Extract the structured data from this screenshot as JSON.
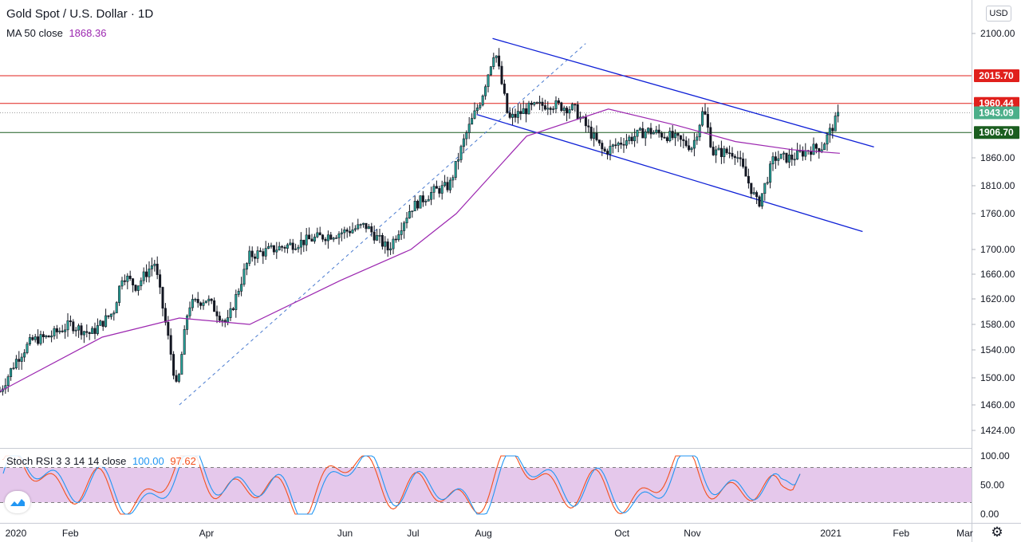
{
  "header": {
    "title": "Gold Spot / U.S. Dollar · 1D",
    "ma_label": "MA 50 close",
    "ma_value": "1868.36",
    "currency": "USD"
  },
  "stoch": {
    "label": "Stoch RSI 3 3 14 14 close",
    "k_value": "100.00",
    "d_value": "97.62",
    "k_color": "#2196f3",
    "d_color": "#f4511e",
    "band_color": "#e1bee7",
    "upper": 80,
    "lower": 20,
    "ticks": [
      "100.00",
      "50.00",
      "0.00"
    ]
  },
  "colors": {
    "up": "#26a69a",
    "candle": "#131722",
    "ma": "#9c27b0",
    "channel": "#0d1fd6",
    "resistance": "#e0201c",
    "support": "#1b5e20",
    "trend_dashed": "#4a7bd0"
  },
  "chart_data": {
    "type": "candlestick",
    "title": "Gold Spot / U.S. Dollar · 1D",
    "y_ticks": [
      "2100.00",
      "1960.00",
      "1860.00",
      "1810.00",
      "1760.00",
      "1700.00",
      "1660.00",
      "1620.00",
      "1580.00",
      "1540.00",
      "1500.00",
      "1460.00",
      "1424.00"
    ],
    "x_labels": [
      "2020",
      "Feb",
      "Apr",
      "Jun",
      "Jul",
      "Aug",
      "Oct",
      "Nov",
      "2021",
      "Feb",
      "Mar"
    ],
    "y_range": [
      1400,
      2140
    ],
    "levels": [
      {
        "name": "resistance-high",
        "value": 2015.7,
        "label": "2015.70"
      },
      {
        "name": "resistance",
        "value": 1960.44,
        "label": "1960.44"
      },
      {
        "name": "last-price",
        "value": 1943.09,
        "label": "1943.09"
      },
      {
        "name": "support",
        "value": 1906.7,
        "label": "1906.70"
      }
    ],
    "price_path": [
      [
        "2020-01-01",
        1480
      ],
      [
        "2020-01-08",
        1525
      ],
      [
        "2020-01-15",
        1555
      ],
      [
        "2020-01-22",
        1560
      ],
      [
        "2020-02-01",
        1580
      ],
      [
        "2020-02-10",
        1565
      ],
      [
        "2020-02-20",
        1600
      ],
      [
        "2020-02-24",
        1660
      ],
      [
        "2020-03-01",
        1640
      ],
      [
        "2020-03-09",
        1680
      ],
      [
        "2020-03-12",
        1620
      ],
      [
        "2020-03-19",
        1480
      ],
      [
        "2020-03-24",
        1610
      ],
      [
        "2020-04-01",
        1620
      ],
      [
        "2020-04-10",
        1580
      ],
      [
        "2020-04-20",
        1690
      ],
      [
        "2020-04-30",
        1700
      ],
      [
        "2020-05-10",
        1710
      ],
      [
        "2020-05-20",
        1720
      ],
      [
        "2020-06-01",
        1730
      ],
      [
        "2020-06-10",
        1740
      ],
      [
        "2020-06-20",
        1700
      ],
      [
        "2020-06-30",
        1770
      ],
      [
        "2020-07-10",
        1800
      ],
      [
        "2020-07-17",
        1810
      ],
      [
        "2020-07-24",
        1900
      ],
      [
        "2020-07-31",
        1970
      ],
      [
        "2020-08-06",
        2070
      ],
      [
        "2020-08-12",
        1930
      ],
      [
        "2020-08-20",
        1950
      ],
      [
        "2020-08-30",
        1960
      ],
      [
        "2020-09-10",
        1950
      ],
      [
        "2020-09-23",
        1870
      ],
      [
        "2020-10-01",
        1890
      ],
      [
        "2020-10-12",
        1910
      ],
      [
        "2020-10-22",
        1900
      ],
      [
        "2020-11-01",
        1880
      ],
      [
        "2020-11-06",
        1950
      ],
      [
        "2020-11-10",
        1870
      ],
      [
        "2020-11-20",
        1870
      ],
      [
        "2020-11-30",
        1775
      ],
      [
        "2020-12-07",
        1860
      ],
      [
        "2020-12-15",
        1860
      ],
      [
        "2020-12-22",
        1875
      ],
      [
        "2020-12-28",
        1880
      ],
      [
        "2021-01-05",
        1943
      ]
    ],
    "ma50_path": [
      [
        "2020-01-01",
        1480
      ],
      [
        "2020-02-15",
        1560
      ],
      [
        "2020-03-20",
        1590
      ],
      [
        "2020-04-20",
        1580
      ],
      [
        "2020-05-30",
        1650
      ],
      [
        "2020-06-30",
        1700
      ],
      [
        "2020-07-20",
        1760
      ],
      [
        "2020-08-20",
        1900
      ],
      [
        "2020-09-25",
        1950
      ],
      [
        "2020-10-25",
        1920
      ],
      [
        "2020-11-20",
        1890
      ],
      [
        "2020-12-15",
        1875
      ],
      [
        "2021-01-05",
        1868.36
      ]
    ],
    "channel_upper": [
      [
        "2020-08-05",
        2090
      ],
      [
        "2021-01-20",
        1880
      ]
    ],
    "channel_lower": [
      [
        "2020-07-29",
        1940
      ],
      [
        "2021-01-15",
        1730
      ]
    ],
    "trendline_dashed": [
      [
        "2020-03-20",
        1460
      ],
      [
        "2020-09-15",
        2080
      ]
    ]
  }
}
